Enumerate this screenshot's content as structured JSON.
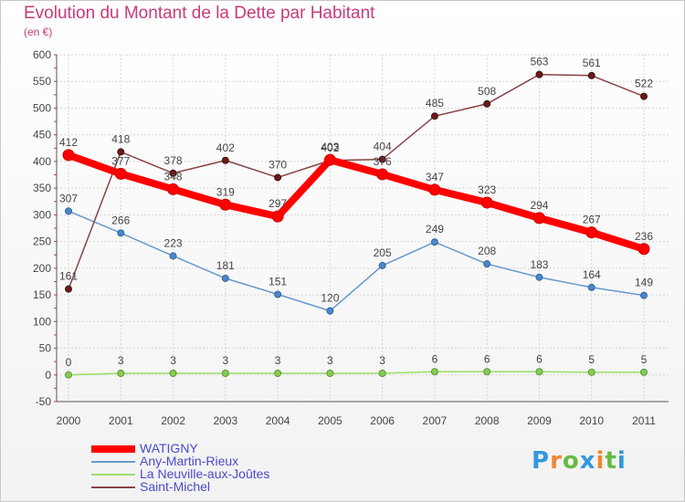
{
  "chart_data": {
    "type": "line",
    "title": "Evolution du Montant de la Dette par Habitant",
    "subtitle": "(en €)",
    "xlabel": "",
    "ylabel": "",
    "categories": [
      "2000",
      "2001",
      "2002",
      "2003",
      "2004",
      "2005",
      "2006",
      "2007",
      "2008",
      "2009",
      "2010",
      "2011"
    ],
    "ylim": [
      -50,
      600
    ],
    "yticks": [
      -50,
      0,
      50,
      100,
      150,
      200,
      250,
      300,
      350,
      400,
      450,
      500,
      550,
      600
    ],
    "grid": true,
    "legend_position": "bottom-left",
    "series": [
      {
        "name": "WATIGNY",
        "color": "#ff0000",
        "values": [
          412,
          377,
          348,
          319,
          297,
          403,
          376,
          347,
          323,
          294,
          267,
          236
        ]
      },
      {
        "name": "Any-Martin-Rieux",
        "color": "#6699cc",
        "values": [
          307,
          266,
          223,
          181,
          151,
          120,
          205,
          249,
          208,
          183,
          164,
          149
        ]
      },
      {
        "name": "La Neuville-aux-Joûtes",
        "color": "#99dd66",
        "values": [
          0,
          3,
          3,
          3,
          3,
          3,
          3,
          6,
          6,
          6,
          5,
          5
        ]
      },
      {
        "name": "Saint-Michel",
        "color": "#884444",
        "values": [
          161,
          418,
          378,
          402,
          370,
          402,
          404,
          485,
          508,
          563,
          561,
          522
        ]
      }
    ]
  },
  "logo": {
    "letters": [
      "P",
      "r",
      "o",
      "x",
      "i",
      "t",
      "i"
    ],
    "colors": [
      "#3399dd",
      "#ee8833",
      "#66bb44",
      "#3399dd",
      "#ee8833",
      "#66bb44",
      "#3399dd"
    ]
  }
}
